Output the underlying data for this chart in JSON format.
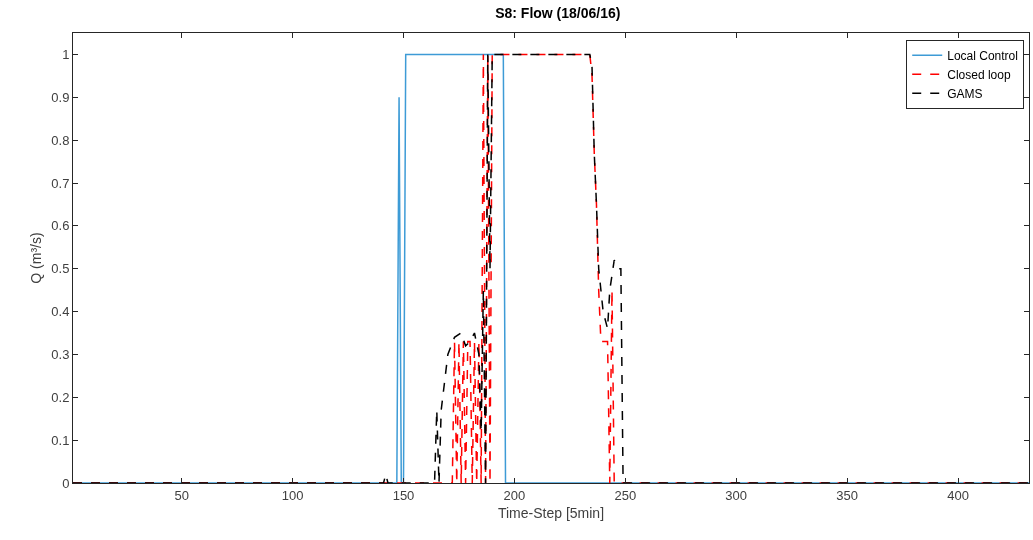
{
  "chart_data": {
    "type": "line",
    "title": "S8: Flow (18/06/16)",
    "xlabel": "Time-Step [5min]",
    "ylabel": "Q (m³/s)",
    "xlim": [
      1,
      432
    ],
    "xticks": [
      50,
      100,
      150,
      200,
      250,
      300,
      350,
      400
    ],
    "ylim": [
      0,
      1.05
    ],
    "yticks": [
      0,
      0.1,
      0.2,
      0.3,
      0.4,
      0.5,
      0.6,
      0.7,
      0.8,
      0.9,
      1
    ],
    "grid": false,
    "legend": "top right",
    "marker": "none",
    "series": [
      {
        "name": "Local Control",
        "color": "#3d9bd6",
        "line_style": "solid",
        "x": [
          1,
          147,
          148,
          149,
          150,
          151,
          195,
          196,
          432
        ],
        "values": [
          0,
          0,
          0.9,
          0,
          0,
          1,
          1,
          0,
          0
        ]
      },
      {
        "name": "Closed loop",
        "color": "#ff0000",
        "line_style": "dashed",
        "x": [
          1,
          170,
          172,
          173,
          174,
          175,
          176,
          177,
          178,
          179,
          180,
          181,
          182,
          183,
          184,
          185,
          186,
          187,
          188,
          189,
          190,
          234,
          235,
          236,
          237,
          238,
          239,
          242,
          243,
          244,
          245,
          432
        ],
        "values": [
          0,
          0,
          0,
          0.33,
          0,
          0.33,
          0,
          0.33,
          0,
          0.33,
          0.33,
          0,
          0.33,
          0,
          0.33,
          0,
          1,
          0,
          1,
          0,
          1,
          1,
          0.95,
          0.77,
          0.65,
          0.45,
          0.33,
          0.33,
          0,
          0.45,
          0,
          0
        ]
      },
      {
        "name": "GAMS",
        "color": "#000000",
        "line_style": "dashed",
        "x": [
          1,
          141,
          142,
          143,
          164,
          165,
          166,
          167,
          170,
          173,
          176,
          178,
          180,
          182,
          184,
          185,
          186,
          187,
          188,
          189,
          190,
          234,
          235,
          236,
          237,
          238,
          240,
          242,
          243,
          245,
          247,
          248,
          249,
          432
        ],
        "values": [
          0,
          0,
          0.02,
          0,
          0,
          0.17,
          0,
          0.17,
          0.3,
          0.34,
          0.35,
          0.32,
          0.33,
          0.35,
          0.3,
          0.12,
          0.45,
          0,
          1,
          0.5,
          1,
          1,
          0.97,
          0.77,
          0.65,
          0.5,
          0.4,
          0.36,
          0.45,
          0.52,
          0.5,
          0.5,
          0,
          0
        ]
      }
    ]
  }
}
